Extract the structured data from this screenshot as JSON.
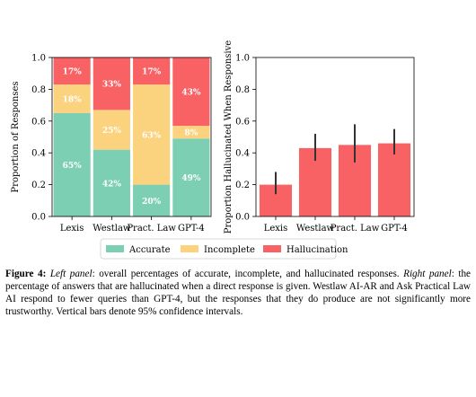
{
  "chart_data": [
    {
      "type": "bar",
      "stacked": true,
      "categories": [
        "Lexis",
        "Westlaw",
        "Pract. Law",
        "GPT-4"
      ],
      "ylabel": "Proportion of Responses",
      "ylim": [
        0,
        1
      ],
      "yticks": [
        "0.0",
        "0.2",
        "0.4",
        "0.6",
        "0.8",
        "1.0"
      ],
      "grid": false,
      "series": [
        {
          "name": "Accurate",
          "color": "#7ccfb3",
          "values": [
            0.65,
            0.42,
            0.2,
            0.49
          ],
          "labels": [
            "65%",
            "42%",
            "20%",
            "49%"
          ]
        },
        {
          "name": "Incomplete",
          "color": "#fbd27e",
          "values": [
            0.18,
            0.25,
            0.63,
            0.08
          ],
          "labels": [
            "18%",
            "25%",
            "63%",
            "8%"
          ]
        },
        {
          "name": "Hallucination",
          "color": "#f96265",
          "values": [
            0.17,
            0.33,
            0.17,
            0.43
          ],
          "labels": [
            "17%",
            "33%",
            "17%",
            "43%"
          ]
        }
      ]
    },
    {
      "type": "bar",
      "categories": [
        "Lexis",
        "Westlaw",
        "Pract. Law",
        "GPT-4"
      ],
      "ylabel": "Proportion Hallucinated When Responsive",
      "ylim": [
        0,
        1
      ],
      "yticks": [
        "0.0",
        "0.2",
        "0.4",
        "0.6",
        "0.8",
        "1.0"
      ],
      "grid": false,
      "color": "#f96265",
      "values": [
        0.2,
        0.43,
        0.45,
        0.46
      ],
      "ci_low": [
        0.14,
        0.35,
        0.34,
        0.39
      ],
      "ci_high": [
        0.28,
        0.52,
        0.58,
        0.55
      ]
    }
  ],
  "legend": {
    "placement": "bottom-center",
    "items": [
      {
        "label": "Accurate",
        "color": "#7ccfb3"
      },
      {
        "label": "Incomplete",
        "color": "#fbd27e"
      },
      {
        "label": "Hallucination",
        "color": "#f96265"
      }
    ]
  },
  "caption": {
    "label": "Figure 4:",
    "left_panel": "Left panel",
    "text1": ": overall percentages of accurate, incomplete, and hallucinated responses. ",
    "right_panel": "Right panel",
    "text2": ": the percentage of answers that are hallucinated when a direct response is given. Westlaw AI-AR and Ask Practical Law AI respond to fewer queries than GPT-4, but the responses that they do produce are not significantly more trustworthy. Vertical bars denote 95% confidence intervals."
  }
}
